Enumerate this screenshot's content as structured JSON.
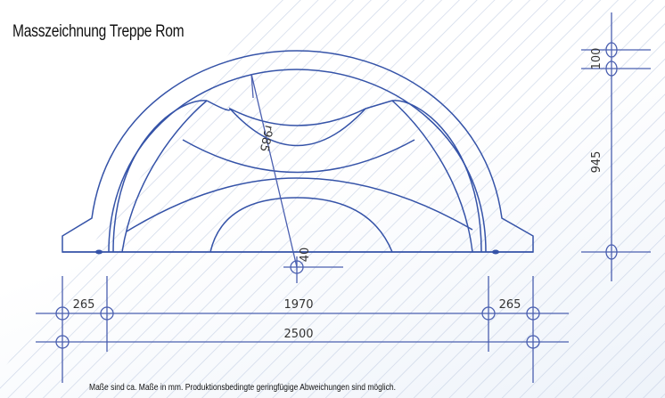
{
  "title": "Masszeichnung Treppe Rom",
  "note": "Maße sind ca. Maße in mm. Produktionsbedingte geringfügige Abweichungen sind möglich.",
  "dimensions": {
    "radius": "r985",
    "offset": "40",
    "side_left": "265",
    "inner_width": "1970",
    "side_right": "265",
    "total_width": "2500",
    "rim_height": "100",
    "height": "945"
  },
  "colors": {
    "line": "#3553a8",
    "hatch": "#c9d3e6"
  }
}
